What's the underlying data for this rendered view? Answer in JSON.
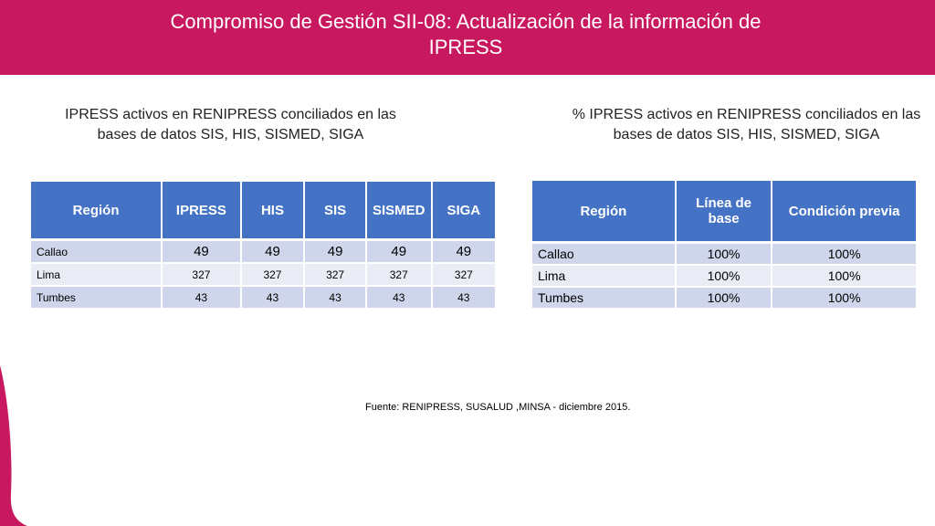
{
  "header": {
    "title": "Compromiso de Gestión SII-08: Actualización de la información de IPRESS"
  },
  "left": {
    "subtitle": "IPRESS activos en RENIPRESS conciliados en las bases de datos SIS, HIS, SISMED, SIGA",
    "columns": [
      "Región",
      "IPRESS",
      "HIS",
      "SIS",
      "SISMED",
      "SIGA"
    ],
    "rows": [
      {
        "region": "Callao",
        "ipress": "49",
        "his": "49",
        "sis": "49",
        "sismed": "49",
        "siga": "49"
      },
      {
        "region": "Lima",
        "ipress": "327",
        "his": "327",
        "sis": "327",
        "sismed": "327",
        "siga": "327"
      },
      {
        "region": "Tumbes",
        "ipress": "43",
        "his": "43",
        "sis": "43",
        "sismed": "43",
        "siga": "43"
      }
    ]
  },
  "right": {
    "subtitle": "% IPRESS activos en RENIPRESS conciliados en las bases de datos SIS, HIS, SISMED, SIGA",
    "columns": [
      "Región",
      "Línea de base",
      "Condición previa"
    ],
    "rows": [
      {
        "region": "Callao",
        "linea_base": "100%",
        "condicion_previa": "100%"
      },
      {
        "region": "Lima",
        "linea_base": "100%",
        "condicion_previa": "100%"
      },
      {
        "region": "Tumbes",
        "linea_base": "100%",
        "condicion_previa": "100%"
      }
    ]
  },
  "source": "Fuente: RENIPRESS, SUSALUD ,MINSA - diciembre 2015.",
  "colors": {
    "header": "#c8185f",
    "table_header": "#4472c4",
    "row_odd": "#cfd5ea",
    "row_even": "#e9ebf5",
    "accent_curve": "#c8185f"
  }
}
